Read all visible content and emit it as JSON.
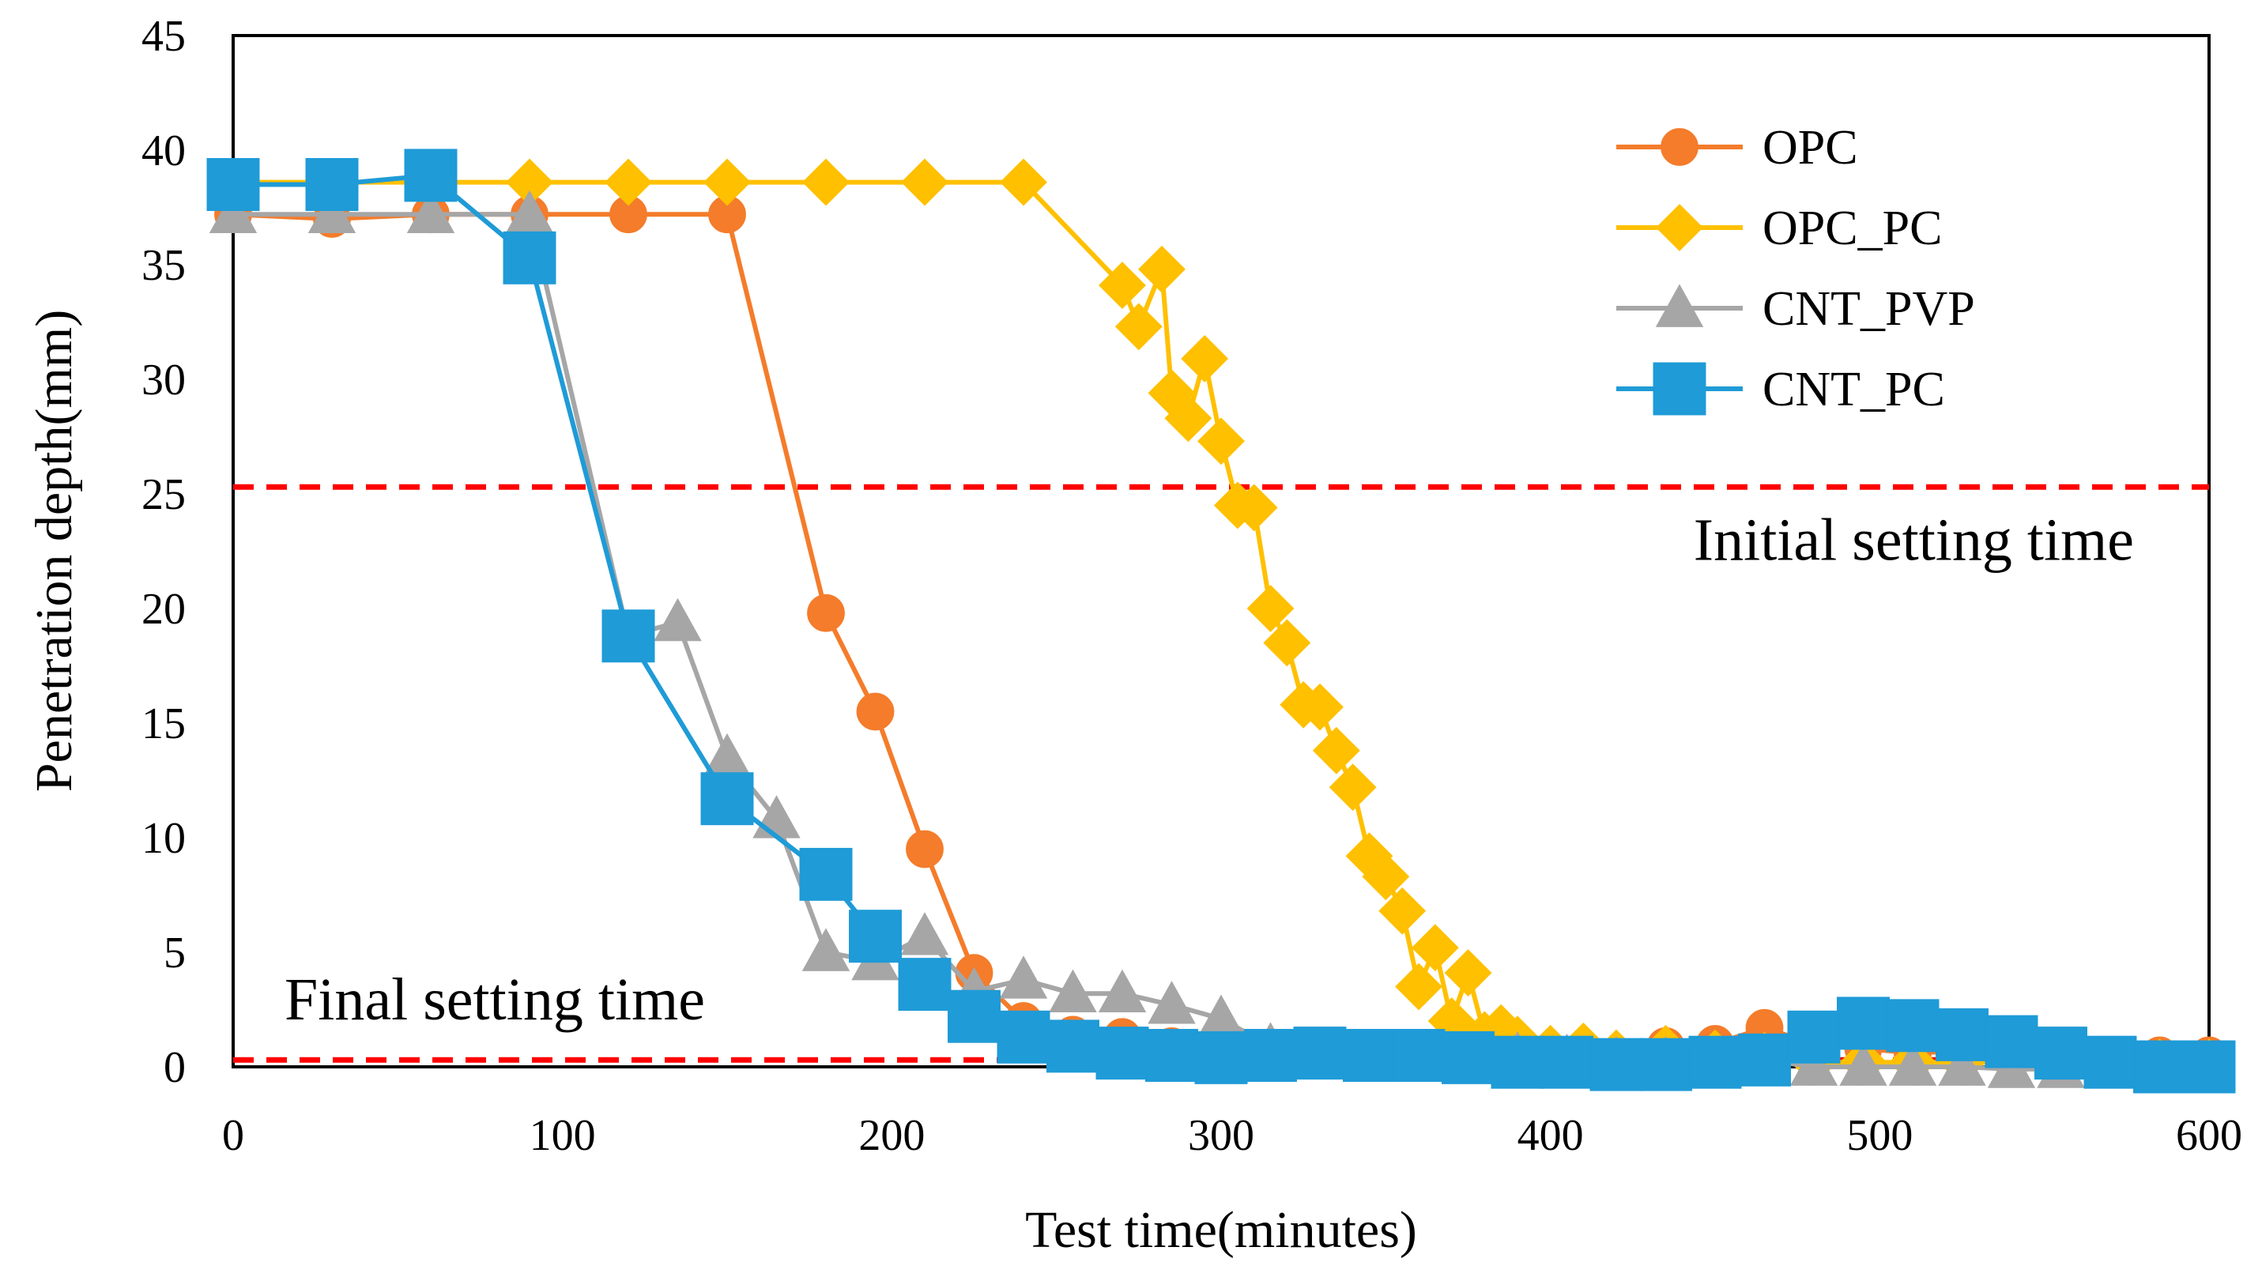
{
  "chart_data": {
    "type": "line",
    "title": "",
    "xlabel": "Test time(minutes)",
    "ylabel": "Penetration depth(mm)",
    "xlim": [
      0,
      600
    ],
    "ylim": [
      0,
      45
    ],
    "xticks": [
      0,
      100,
      200,
      300,
      400,
      500,
      600
    ],
    "yticks": [
      0,
      5,
      10,
      15,
      20,
      25,
      30,
      35,
      40,
      45
    ],
    "grid": false,
    "legend_position": "top-right",
    "reference_lines": [
      {
        "label": "Initial setting time",
        "y": 25.3,
        "color": "#ff0000",
        "style": "dashed"
      },
      {
        "label": "Final setting time",
        "y": 0.3,
        "color": "#ff0000",
        "style": "dashed"
      }
    ],
    "series": [
      {
        "name": "OPC",
        "color": "#f47c2b",
        "marker": "circle",
        "x": [
          0,
          30,
          60,
          90,
          120,
          150,
          180,
          195,
          210,
          225,
          240,
          255,
          270,
          285,
          300,
          315,
          330,
          345,
          360,
          375,
          390,
          405,
          420,
          435,
          450,
          465,
          480,
          495,
          510,
          525,
          540,
          555,
          570,
          585,
          600
        ],
        "y": [
          37.2,
          37.0,
          37.2,
          37.2,
          37.2,
          37.2,
          19.8,
          15.5,
          9.5,
          4.1,
          2.0,
          1.4,
          1.3,
          0.9,
          0.7,
          0.6,
          0.6,
          0.5,
          0.5,
          0.6,
          0.6,
          0.5,
          0.5,
          0.9,
          1.0,
          1.7,
          1.0,
          0.8,
          0.6,
          0.7,
          0.5,
          0.5,
          0.5,
          0.5,
          0.5
        ]
      },
      {
        "name": "OPC_PC",
        "color": "#ffc000",
        "marker": "diamond",
        "x": [
          0,
          30,
          60,
          90,
          120,
          150,
          180,
          210,
          240,
          270,
          275,
          282,
          285,
          290,
          295,
          300,
          305,
          310,
          315,
          320,
          325,
          330,
          335,
          340,
          345,
          350,
          355,
          360,
          365,
          370,
          375,
          380,
          385,
          390,
          400,
          410,
          420,
          435,
          450,
          465,
          480,
          495,
          510,
          525,
          540,
          555,
          570,
          585,
          600
        ],
        "y": [
          38.6,
          38.6,
          38.6,
          38.6,
          38.6,
          38.6,
          38.6,
          38.6,
          38.6,
          34.1,
          32.3,
          34.8,
          29.4,
          28.3,
          30.9,
          27.3,
          24.5,
          24.4,
          20.0,
          18.5,
          15.8,
          15.7,
          13.8,
          12.2,
          9.2,
          8.3,
          6.8,
          3.5,
          5.2,
          2.0,
          4.1,
          1.4,
          1.7,
          1.2,
          0.8,
          0.9,
          0.6,
          0.8,
          0.6,
          0.5,
          0.2,
          0.2,
          0.2,
          0.2,
          0.2,
          0.2,
          0.2,
          0.2,
          0.2
        ]
      },
      {
        "name": "CNT_PVP",
        "color": "#a6a6a6",
        "marker": "triangle",
        "x": [
          0,
          30,
          60,
          90,
          120,
          135,
          150,
          165,
          180,
          195,
          210,
          225,
          240,
          255,
          270,
          285,
          300,
          315,
          330,
          345,
          360,
          375,
          390,
          405,
          420,
          435,
          450,
          465,
          480,
          495,
          510,
          525,
          540,
          555,
          570,
          585,
          600
        ],
        "y": [
          37.2,
          37.2,
          37.2,
          37.2,
          18.8,
          19.4,
          13.5,
          10.8,
          5.0,
          4.6,
          5.7,
          3.3,
          3.8,
          3.2,
          3.2,
          2.7,
          2.1,
          0.9,
          0.6,
          0.3,
          0.4,
          0.4,
          0.5,
          0.4,
          0.3,
          0.3,
          0.3,
          0.3,
          0.0,
          0.0,
          0.0,
          0.0,
          -0.1,
          -0.1,
          0.0,
          0.0,
          0.0
        ]
      },
      {
        "name": "CNT_PC",
        "color": "#1f9bd7",
        "marker": "square",
        "x": [
          0,
          30,
          60,
          90,
          120,
          150,
          180,
          195,
          210,
          225,
          240,
          255,
          270,
          285,
          300,
          315,
          330,
          345,
          360,
          375,
          390,
          405,
          420,
          435,
          450,
          465,
          480,
          495,
          510,
          525,
          540,
          555,
          570,
          585,
          600
        ],
        "y": [
          38.5,
          38.5,
          38.9,
          35.3,
          18.8,
          11.7,
          8.4,
          5.7,
          3.6,
          2.2,
          1.3,
          0.9,
          0.6,
          0.5,
          0.4,
          0.5,
          0.6,
          0.5,
          0.5,
          0.4,
          0.2,
          0.2,
          0.1,
          0.1,
          0.2,
          0.3,
          1.3,
          1.9,
          1.8,
          1.4,
          1.1,
          0.6,
          0.2,
          0.0,
          0.0
        ]
      }
    ]
  }
}
